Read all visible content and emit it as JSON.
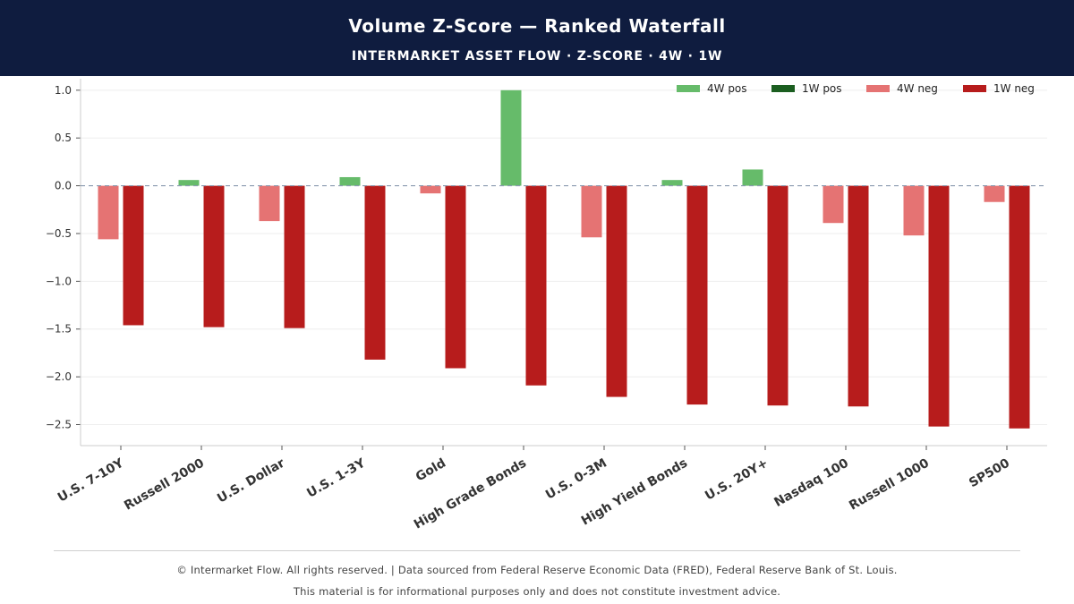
{
  "header": {
    "title": "Volume Z-Score — Ranked Waterfall",
    "subtitle": "INTERMARKET ASSET FLOW  ·  Z-SCORE  ·  4W · 1W"
  },
  "colors": {
    "header_bg": "#0f1c3f",
    "pos_4w": "#66bb6a",
    "pos_1w": "#1b5e20",
    "neg_4w": "#e57373",
    "neg_1w": "#b71c1c",
    "zero_line": "#8a9bb0",
    "grid": "#eeeeee"
  },
  "chart_data": {
    "type": "bar",
    "title": "",
    "xlabel": "",
    "ylabel": "",
    "ylim": [
      -2.72,
      1.12
    ],
    "yticks": [
      1.0,
      0.5,
      0.0,
      -0.5,
      -1.0,
      -1.5,
      -2.0,
      -2.5
    ],
    "ytick_labels": [
      "1.0",
      "0.5",
      "0.0",
      "−0.5",
      "−1.0",
      "−1.5",
      "−2.0",
      "−2.5"
    ],
    "categories": [
      "U.S. 7-10Y",
      "Russell 2000",
      "U.S. Dollar",
      "U.S.  1-3Y",
      "Gold",
      "High Grade Bonds",
      "U.S. 0-3M",
      "High Yield Bonds",
      "U.S. 20Y+",
      "Nasdaq 100",
      "Russell 1000",
      "SP500"
    ],
    "series": [
      {
        "name": "4W",
        "values": [
          -0.56,
          0.06,
          -0.37,
          0.09,
          -0.08,
          1.0,
          -0.54,
          0.06,
          0.17,
          -0.39,
          -0.52,
          -0.17
        ]
      },
      {
        "name": "1W",
        "values": [
          -1.46,
          -1.48,
          -1.49,
          -1.82,
          -1.91,
          -2.09,
          -2.21,
          -2.29,
          -2.3,
          -2.31,
          -2.52,
          -2.54
        ]
      }
    ],
    "legend": {
      "position": "top-right",
      "entries": [
        "4W pos",
        "1W pos",
        "4W neg",
        "1W neg"
      ]
    },
    "zero_line": "dashed",
    "grid": true
  },
  "footer": {
    "line1": "© Intermarket Flow. All rights reserved.  |  Data sourced from Federal Reserve Economic Data (FRED), Federal Reserve Bank of St. Louis.",
    "line2": "This material is for informational purposes only and does not constitute investment advice."
  }
}
